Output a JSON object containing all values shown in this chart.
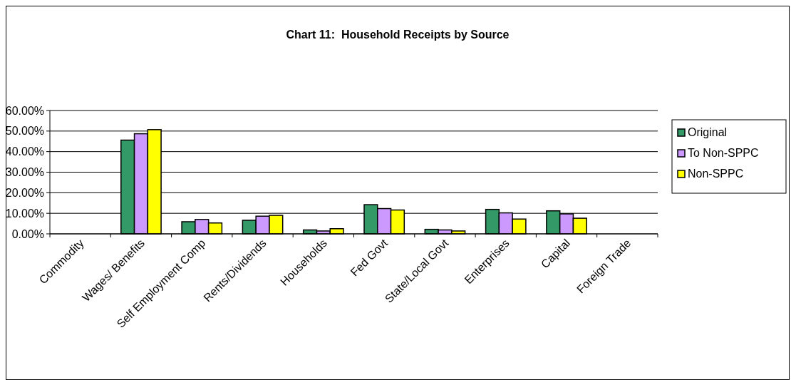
{
  "chart_data": {
    "type": "bar",
    "title": "Chart 11:  Household Receipts by Source",
    "categories": [
      "Commodity",
      "Wages/ Benefits",
      "Self Employment Comp",
      "Rents/Dividends",
      "Households",
      "Fed Govt",
      "State/Local Govt",
      "Enterprises",
      "Capital",
      "Foreign Trade"
    ],
    "series": [
      {
        "name": "Original",
        "color": "#339966",
        "values": [
          0,
          45.6,
          5.9,
          6.6,
          1.9,
          14.2,
          2.2,
          11.9,
          11.2,
          null
        ]
      },
      {
        "name": "To Non-SPPC",
        "color": "#cc99ff",
        "values": [
          0,
          48.7,
          7.0,
          8.6,
          1.4,
          12.3,
          1.9,
          10.2,
          9.7,
          null
        ]
      },
      {
        "name": "Non-SPPC",
        "color": "#ffff00",
        "values": [
          0,
          50.7,
          5.3,
          9.0,
          2.5,
          11.6,
          1.4,
          7.2,
          7.6,
          null
        ]
      }
    ],
    "ylim": [
      0,
      60
    ],
    "yticks": [
      {
        "value": 0,
        "label": "0.00%"
      },
      {
        "value": 10,
        "label": "10.00%"
      },
      {
        "value": 20,
        "label": "20.00%"
      },
      {
        "value": 30,
        "label": "30.00%"
      },
      {
        "value": 40,
        "label": "40.00%"
      },
      {
        "value": 50,
        "label": "50.00%"
      },
      {
        "value": 60,
        "label": "60.00%"
      }
    ],
    "grid": "y",
    "legend": "right"
  }
}
